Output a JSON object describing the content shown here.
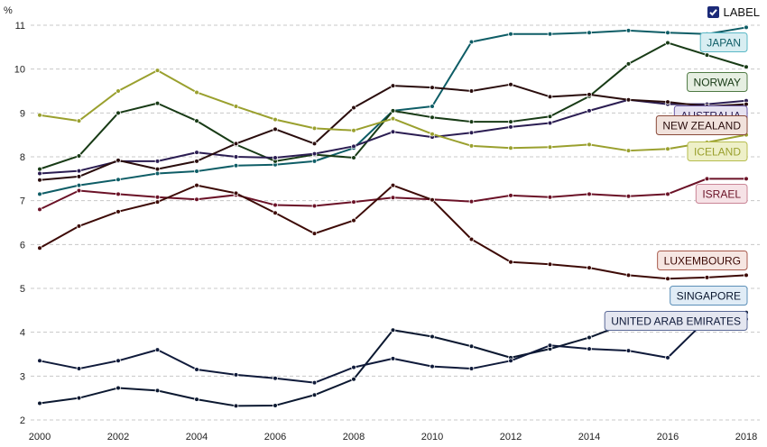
{
  "legend_toggle": {
    "label": "LABEL",
    "checked": true
  },
  "chart_data": {
    "type": "line",
    "unit": "%",
    "x": [
      2000,
      2001,
      2002,
      2003,
      2004,
      2005,
      2006,
      2007,
      2008,
      2009,
      2010,
      2011,
      2012,
      2013,
      2014,
      2015,
      2016,
      2017,
      2018
    ],
    "xticks": [
      2000,
      2002,
      2004,
      2006,
      2008,
      2010,
      2012,
      2014,
      2016,
      2018
    ],
    "yticks": [
      2,
      3,
      4,
      5,
      6,
      7,
      8,
      9,
      10,
      11
    ],
    "ylim": [
      2,
      11
    ],
    "xlim": [
      2000,
      2018
    ],
    "grid": true,
    "series": [
      {
        "name": "JAPAN",
        "color": "#0e5d66",
        "label_bg": "#d8eef2",
        "label_border": "#5ab8c6",
        "values": [
          7.15,
          7.35,
          7.48,
          7.62,
          7.67,
          7.8,
          7.82,
          7.9,
          8.2,
          9.05,
          9.15,
          10.62,
          10.8,
          10.8,
          10.83,
          10.88,
          10.83,
          10.8,
          10.95
        ]
      },
      {
        "name": "NORWAY",
        "color": "#183b16",
        "label_bg": "#e6efe2",
        "label_border": "#4f7a44",
        "values": [
          7.72,
          8.02,
          9.0,
          9.22,
          8.82,
          8.28,
          7.9,
          8.05,
          7.98,
          9.05,
          8.9,
          8.8,
          8.8,
          8.92,
          9.38,
          10.12,
          10.6,
          10.32,
          10.05
        ]
      },
      {
        "name": "AUSTRALIA",
        "color": "#2b1d52",
        "label_bg": "#e6e2f1",
        "label_border": "#6b5aa6",
        "values": [
          7.62,
          7.68,
          7.9,
          7.9,
          8.1,
          8.0,
          7.98,
          8.07,
          8.24,
          8.57,
          8.45,
          8.55,
          8.68,
          8.77,
          9.05,
          9.3,
          9.2,
          9.2,
          9.28
        ]
      },
      {
        "name": "NEW ZEALAND",
        "color": "#2a0d0d",
        "label_bg": "#f1e2dc",
        "label_border": "#8a4a3a",
        "values": [
          7.47,
          7.55,
          7.92,
          7.72,
          7.9,
          8.3,
          8.63,
          8.3,
          9.12,
          9.62,
          9.58,
          9.5,
          9.65,
          9.37,
          9.42,
          9.3,
          9.25,
          9.15,
          9.2
        ]
      },
      {
        "name": "ICELAND",
        "color": "#9aa02e",
        "label_bg": "#eef0c8",
        "label_border": "#b7bd4f",
        "values": [
          8.95,
          8.82,
          9.5,
          9.97,
          9.47,
          9.15,
          8.85,
          8.65,
          8.6,
          8.87,
          8.52,
          8.25,
          8.2,
          8.22,
          8.28,
          8.14,
          8.18,
          8.33,
          8.5
        ]
      },
      {
        "name": "ISRAEL",
        "color": "#6b1227",
        "label_bg": "#f6e2e6",
        "label_border": "#c98596",
        "values": [
          6.8,
          7.23,
          7.15,
          7.08,
          7.03,
          7.13,
          6.9,
          6.88,
          6.97,
          7.07,
          7.03,
          6.98,
          7.12,
          7.08,
          7.15,
          7.1,
          7.15,
          7.5,
          7.5
        ]
      },
      {
        "name": "LUXEMBOURG",
        "color": "#3d0a06",
        "label_bg": "#f6e6e2",
        "label_border": "#a85a4c",
        "values": [
          5.92,
          6.42,
          6.75,
          6.97,
          7.35,
          7.17,
          6.72,
          6.25,
          6.55,
          7.35,
          7.02,
          6.12,
          5.6,
          5.55,
          5.47,
          5.3,
          5.22,
          5.25,
          5.3
        ]
      },
      {
        "name": "SINGAPORE",
        "color": "#0b1830",
        "label_bg": "#e0ecf6",
        "label_border": "#5b8fb8",
        "values": [
          2.38,
          2.5,
          2.73,
          2.67,
          2.47,
          2.32,
          2.33,
          2.57,
          2.93,
          4.05,
          3.9,
          3.68,
          3.42,
          3.62,
          3.88,
          4.22,
          4.25,
          4.3,
          4.45
        ]
      },
      {
        "name": "UNITED ARAB EMIRATES",
        "color": "#0f1a3a",
        "label_bg": "#e4e6f0",
        "label_border": "#5a6896",
        "values": [
          3.35,
          3.17,
          3.35,
          3.6,
          3.15,
          3.03,
          2.95,
          2.85,
          3.2,
          3.4,
          3.22,
          3.17,
          3.35,
          3.7,
          3.62,
          3.58,
          3.42,
          4.3,
          4.3
        ]
      }
    ]
  }
}
